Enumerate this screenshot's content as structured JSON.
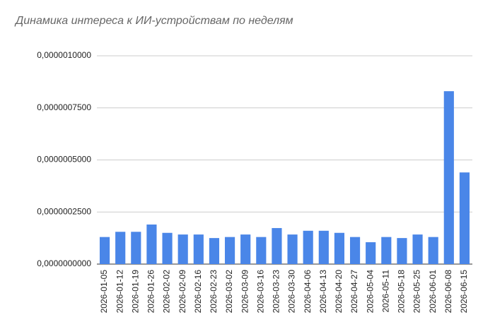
{
  "chart_data": {
    "type": "bar",
    "title": "Динамика интереса к ИИ-устройствам по неделям",
    "categories": [
      "2026-01-05",
      "2026-01-12",
      "2026-01-19",
      "2026-01-26",
      "2026-02-02",
      "2026-02-09",
      "2026-02-16",
      "2026-02-23",
      "2026-03-02",
      "2026-03-09",
      "2026-03-16",
      "2026-03-23",
      "2026-03-30",
      "2026-04-06",
      "2026-04-13",
      "2026-04-20",
      "2026-04-27",
      "2026-05-04",
      "2026-05-11",
      "2026-05-18",
      "2026-05-25",
      "2026-06-01",
      "2026-06-08",
      "2026-06-15"
    ],
    "values": [
      1.3e-07,
      1.55e-07,
      1.55e-07,
      1.9e-07,
      1.5e-07,
      1.42e-07,
      1.42e-07,
      1.25e-07,
      1.3e-07,
      1.42e-07,
      1.3e-07,
      1.73e-07,
      1.42e-07,
      1.6e-07,
      1.6e-07,
      1.5e-07,
      1.3e-07,
      1.05e-07,
      1.3e-07,
      1.25e-07,
      1.42e-07,
      1.3e-07,
      8.3e-07,
      4.4e-07
    ],
    "color": "#4a86e8",
    "ylim": [
      0,
      1e-06
    ],
    "yticks": [
      {
        "value": 0,
        "label": "0,0000000000"
      },
      {
        "value": 2.5e-07,
        "label": "0,0000002500"
      },
      {
        "value": 5e-07,
        "label": "0,0000005000"
      },
      {
        "value": 7.5e-07,
        "label": "0,0000007500"
      },
      {
        "value": 1e-06,
        "label": "0,0000010000"
      }
    ],
    "grid": true
  }
}
